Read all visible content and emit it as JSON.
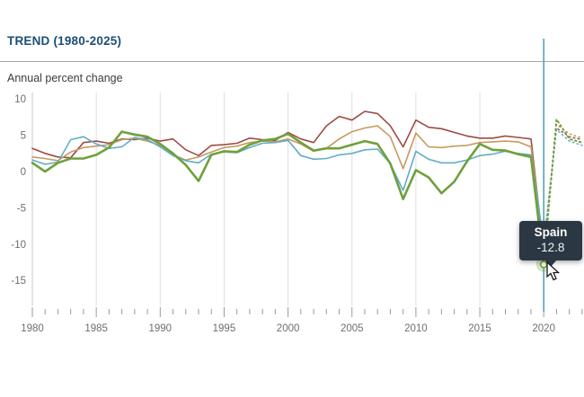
{
  "header": {
    "title": "TREND (1980-2025)",
    "subtitle": "Annual percent change",
    "title_color": "#1c4e74"
  },
  "tooltip": {
    "country": "Spain",
    "value": "-12.8",
    "bg_color": "#2b3844"
  },
  "colors": {
    "spain_green": "#6fa03c",
    "series_blue": "#62aec5",
    "series_red": "#9e4b44",
    "series_tan": "#c69a60",
    "hover_line": "#58a3b8",
    "gridline": "#dedede",
    "axis_line": "#c8c8c8",
    "tick": "#9a9a9a",
    "tick_label": "#6e6e6e",
    "marker_halo": "rgba(111,160,60,0.28)"
  },
  "chart_data": {
    "type": "line",
    "title": "TREND (1980-2025)",
    "ylabel": "Annual percent change",
    "ylim": [
      -15,
      10
    ],
    "y_ticks": [
      10,
      5,
      0,
      -5,
      -10,
      -15
    ],
    "x_major_tick_labels": [
      "1980",
      "1985",
      "1990",
      "1995",
      "2000",
      "2005",
      "2010",
      "2015",
      "2020"
    ],
    "x_minor_ticks_every_year": true,
    "x_visible_range": [
      1980,
      2023
    ],
    "grid": "vertical-only",
    "legend_position": "none",
    "hover_year": 2020,
    "hovered_series": "Spain",
    "hovered_value": -12.8,
    "years": [
      1980,
      1981,
      1982,
      1983,
      1984,
      1985,
      1986,
      1987,
      1988,
      1989,
      1990,
      1991,
      1992,
      1993,
      1994,
      1995,
      1996,
      1997,
      1998,
      1999,
      2000,
      2001,
      2002,
      2003,
      2004,
      2005,
      2006,
      2007,
      2008,
      2009,
      2010,
      2011,
      2012,
      2013,
      2014,
      2015,
      2016,
      2017,
      2018,
      2019,
      2020
    ],
    "series": [
      {
        "name": "series-red",
        "color_key": "series_red",
        "width": 1.6,
        "values": [
          3.2,
          2.5,
          2.0,
          1.9,
          4.0,
          4.2,
          3.9,
          4.5,
          4.4,
          4.6,
          4.2,
          4.5,
          3.0,
          2.2,
          3.6,
          3.7,
          3.9,
          4.6,
          4.4,
          4.3,
          5.4,
          4.5,
          4.0,
          6.3,
          7.6,
          7.1,
          8.3,
          8.0,
          6.3,
          3.4,
          7.1,
          6.1,
          5.9,
          5.4,
          4.9,
          4.6,
          4.6,
          4.9,
          4.7,
          4.5,
          -11.0
        ]
      },
      {
        "name": "series-tan",
        "color_key": "series_tan",
        "width": 1.6,
        "values": [
          2.0,
          1.8,
          1.5,
          2.7,
          3.3,
          3.5,
          3.7,
          4.4,
          4.6,
          4.2,
          3.6,
          2.3,
          1.6,
          2.0,
          2.7,
          3.3,
          3.5,
          4.0,
          4.2,
          4.1,
          4.5,
          3.8,
          2.8,
          3.2,
          4.5,
          5.5,
          6.0,
          6.3,
          4.8,
          0.4,
          5.3,
          3.4,
          3.3,
          3.5,
          3.6,
          4.0,
          4.1,
          4.2,
          4.1,
          3.4,
          -10.3
        ]
      },
      {
        "name": "series-blue",
        "color_key": "series_blue",
        "width": 1.6,
        "values": [
          1.6,
          1.0,
          1.3,
          4.4,
          4.8,
          3.8,
          3.2,
          3.4,
          4.7,
          4.4,
          3.4,
          2.2,
          1.5,
          1.2,
          2.4,
          2.7,
          2.6,
          3.3,
          3.9,
          4.0,
          4.3,
          2.2,
          1.7,
          1.8,
          2.3,
          2.5,
          3.0,
          3.1,
          1.1,
          -2.6,
          2.8,
          1.7,
          1.2,
          1.2,
          1.6,
          2.2,
          2.4,
          2.8,
          2.5,
          2.3,
          -9.8
        ]
      },
      {
        "name": "Spain",
        "color_key": "spain_green",
        "width": 2.6,
        "values": [
          1.2,
          0.0,
          1.2,
          1.8,
          1.8,
          2.3,
          3.3,
          5.5,
          5.1,
          4.8,
          3.8,
          2.5,
          0.9,
          -1.3,
          2.3,
          2.8,
          2.7,
          3.7,
          4.3,
          4.5,
          5.2,
          4.0,
          2.9,
          3.2,
          3.2,
          3.7,
          4.2,
          3.8,
          1.1,
          -3.8,
          0.2,
          -0.8,
          -3.0,
          -1.4,
          1.4,
          3.8,
          3.0,
          2.9,
          2.4,
          2.0,
          -12.8
        ]
      }
    ],
    "projection_years": [
      2020,
      2021,
      2022,
      2023
    ],
    "projections": [
      {
        "name": "series-red",
        "color_key": "series_red",
        "width": 1.5,
        "values": [
          -11.0,
          6.0,
          4.8,
          4.4
        ]
      },
      {
        "name": "series-tan",
        "color_key": "series_tan",
        "width": 1.5,
        "values": [
          -10.3,
          6.5,
          5.2,
          4.6
        ]
      },
      {
        "name": "series-blue",
        "color_key": "series_blue",
        "width": 1.5,
        "values": [
          -9.8,
          5.8,
          4.2,
          3.6
        ]
      },
      {
        "name": "Spain",
        "color_key": "spain_green",
        "width": 2.0,
        "values": [
          -12.8,
          7.2,
          4.5,
          4.0
        ]
      }
    ]
  }
}
